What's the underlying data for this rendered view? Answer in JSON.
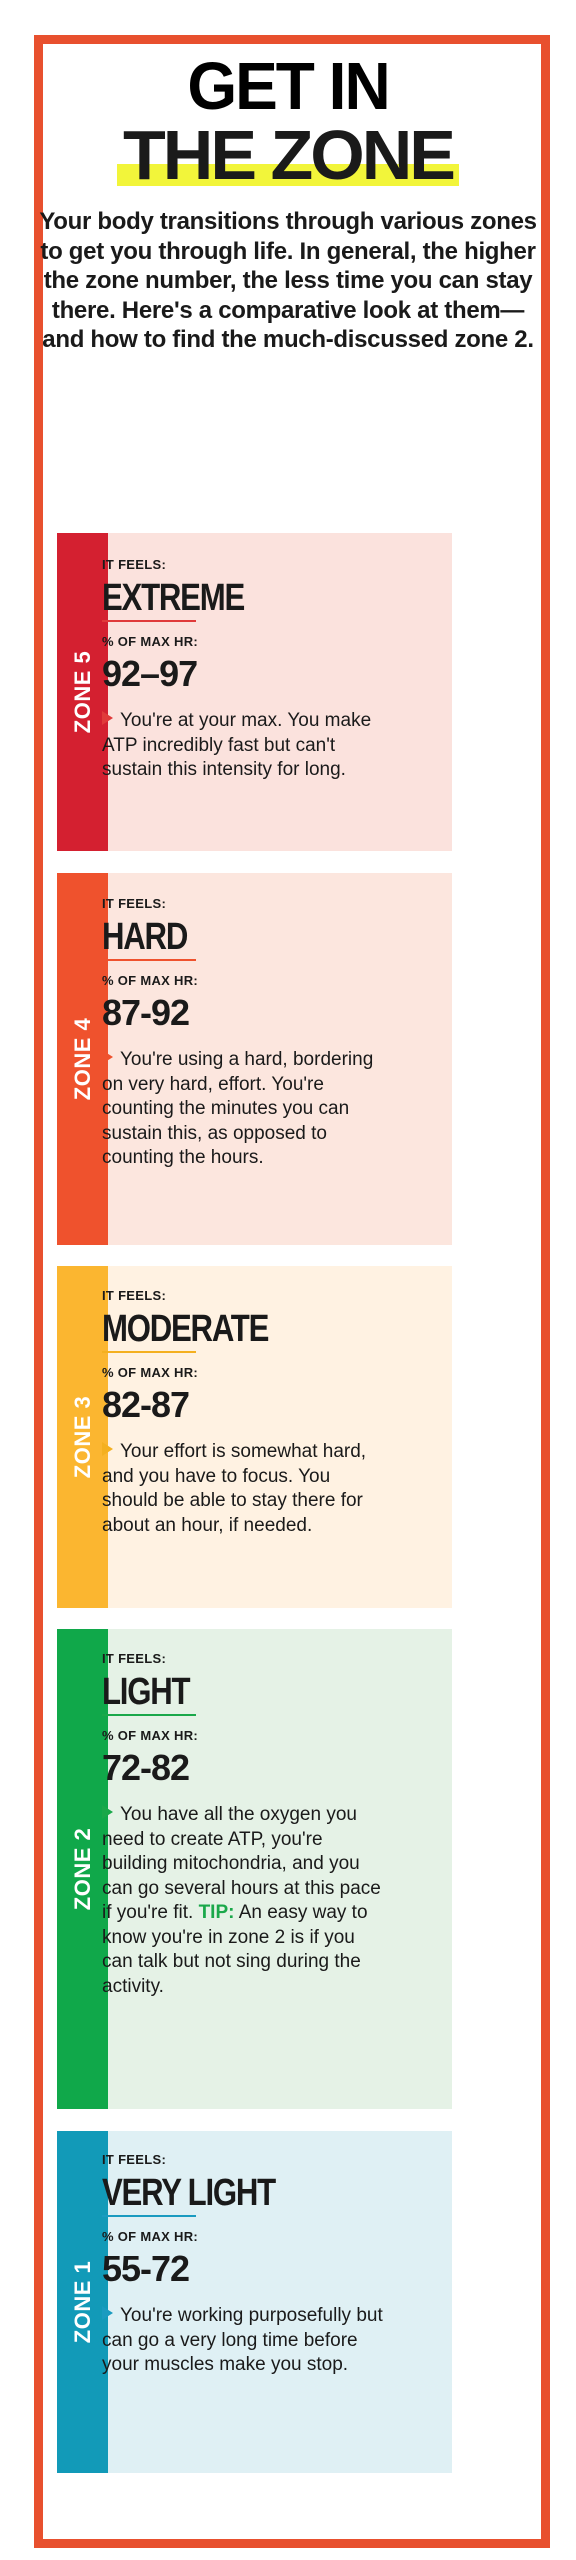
{
  "header": {
    "title_line1": "GET IN",
    "title_line2": "THE ZONE",
    "intro": "Your body transitions through various zones to get you through life. In general, the higher the zone number, the less time you can stay there. Here's a comparative look at them—and how to find the much-discussed zone 2."
  },
  "labels": {
    "it_feels": "IT FEELS:",
    "pct_max_hr": "% OF MAX HR:"
  },
  "zones": [
    {
      "zone": "ZONE 5",
      "feels": "EXTREME",
      "pct": "92–97",
      "desc": "You're at your max. You make ATP incredibly fast but can't sustain this intensity for long.",
      "bar_color": "#d42030",
      "panel_color": "#fbe2dd",
      "accent": "#e03a3a"
    },
    {
      "zone": "ZONE 4",
      "feels": "HARD",
      "pct": "87-92",
      "desc": "You're using a hard, bordering on very hard, effort. You're counting the minutes you can sustain this, as opposed to counting the hours.",
      "bar_color": "#ef522d",
      "panel_color": "#fce6de",
      "accent": "#ef522d"
    },
    {
      "zone": "ZONE 3",
      "feels": "MODERATE",
      "pct": "82-87",
      "desc": "Your effort is somewhat hard, and you have to focus. You should be able to stay there for about an hour, if needed.",
      "bar_color": "#fbb630",
      "panel_color": "#fff2e2",
      "accent": "#f4b020"
    },
    {
      "zone": "ZONE 2",
      "feels": "LIGHT",
      "pct": "72-82",
      "desc": "You have all the oxygen you need to create ATP, you're building mitochondria, and you can go several hours at this pace if you're fit.",
      "tip_label": "TIP:",
      "tip": "An easy way to know you're in zone 2 is if you can talk but not sing during the activity.",
      "bar_color": "#10a84a",
      "panel_color": "#e5f2e6",
      "accent": "#1aa84a"
    },
    {
      "zone": "ZONE 1",
      "feels": "VERY LIGHT",
      "pct": "55-72",
      "desc": "You're working purposefully but can go a very long time before your muscles make you stop.",
      "bar_color": "#129ab8",
      "panel_color": "#dff0f4",
      "accent": "#1a9bc0"
    }
  ]
}
